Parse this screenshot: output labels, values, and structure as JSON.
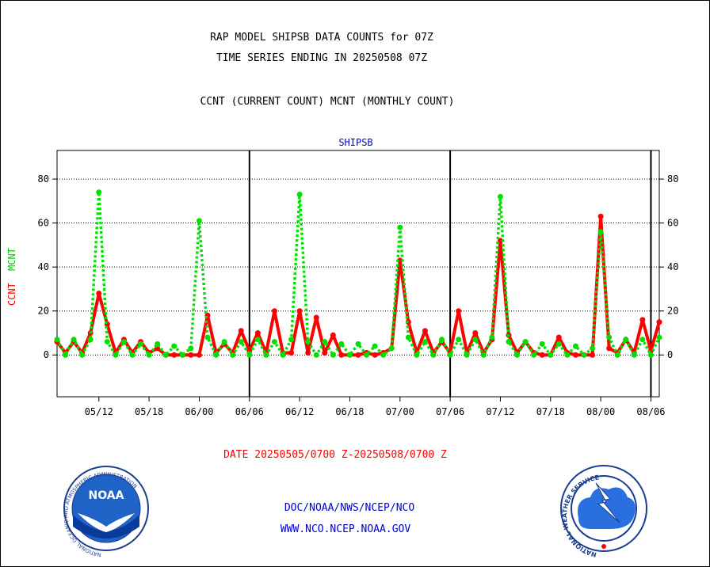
{
  "header": {
    "title_line1": "RAP MODEL SHIPSB DATA COUNTS for 07Z",
    "title_line2": "TIME SERIES ENDING IN 20250508 07Z",
    "subtitle": "CCNT (CURRENT COUNT) MCNT (MONTHLY COUNT)",
    "panel_label": "SHIPSB"
  },
  "footer": {
    "date_range": "DATE 20250505/0700 Z-20250508/0700 Z",
    "org_line": "DOC/NOAA/NWS/NCEP/NCO",
    "url_line": "WWW.NCO.NCEP.NOAA.GOV",
    "noaa_logo_text": "NOAA",
    "noaa_seal_text": "NATIONAL OCEANIC AND ATMOSPHERIC ADMINISTRATION",
    "noaa_seal_bottom": "U.S. DEPARTMENT OF COMMERCE",
    "nws_seal_text": "NATIONAL WEATHER SERVICE"
  },
  "colors": {
    "ccnt": "#ff0000",
    "mcnt": "#00e000",
    "title": "#000000",
    "date": "#ff0000",
    "links": "#0000cc",
    "grid": "#000000"
  },
  "chart_data": {
    "type": "line",
    "ylabel_ccnt": "CCNT",
    "ylabel_mcnt": "MCNT",
    "ylim": [
      -19,
      93
    ],
    "yticks": [
      0,
      20,
      40,
      60,
      80
    ],
    "ytick_labels": [
      "0",
      "20",
      "40",
      "60",
      "80"
    ],
    "xlim": [
      0,
      72
    ],
    "xticks": [
      5,
      11,
      17,
      23,
      29,
      35,
      41,
      47,
      53,
      59,
      65,
      71
    ],
    "xtick_labels": [
      "05/12",
      "05/18",
      "06/00",
      "06/06",
      "06/12",
      "06/18",
      "07/00",
      "07/06",
      "07/12",
      "07/18",
      "08/00",
      "08/06"
    ],
    "day_boundaries": [
      23,
      47,
      71
    ],
    "grid": true,
    "legend": "none",
    "series": [
      {
        "key": "ccnt",
        "values": [
          6,
          1,
          6,
          1,
          10,
          28,
          14,
          1,
          7,
          1,
          6,
          1,
          3,
          0,
          0,
          0,
          0,
          0,
          18,
          1,
          5,
          1,
          11,
          2,
          10,
          1,
          20,
          1,
          1,
          20,
          1,
          17,
          1,
          9,
          0,
          0,
          0,
          1,
          0,
          1,
          3,
          43,
          15,
          1,
          11,
          1,
          6,
          1,
          20,
          1,
          10,
          1,
          7,
          52,
          9,
          1,
          6,
          1,
          0,
          0,
          8,
          1,
          0,
          0,
          0,
          63,
          3,
          1,
          7,
          1,
          16,
          2,
          15
        ]
      },
      {
        "key": "mcnt",
        "values": [
          7,
          0,
          7,
          0,
          7,
          74,
          6,
          0,
          6,
          0,
          5,
          0,
          5,
          0,
          4,
          0,
          3,
          61,
          8,
          0,
          6,
          0,
          6,
          0,
          7,
          0,
          6,
          0,
          7,
          73,
          6,
          0,
          6,
          0,
          5,
          0,
          5,
          0,
          4,
          0,
          3,
          58,
          8,
          0,
          6,
          0,
          7,
          0,
          7,
          0,
          7,
          0,
          8,
          72,
          6,
          0,
          6,
          0,
          5,
          0,
          5,
          0,
          4,
          0,
          3,
          56,
          8,
          0,
          7,
          0,
          7,
          0,
          8
        ]
      }
    ]
  }
}
